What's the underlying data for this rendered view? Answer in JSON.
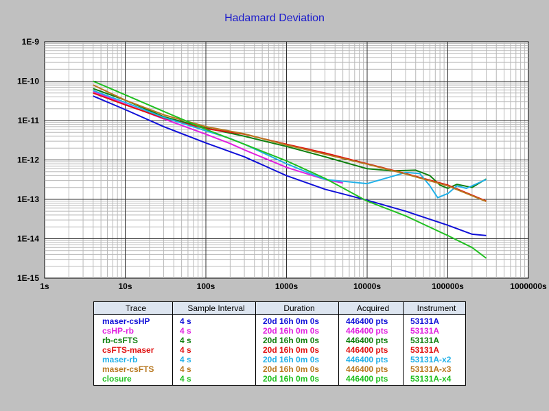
{
  "chart_data": {
    "type": "line",
    "title": "Hadamard Deviation",
    "xscale": "log",
    "yscale": "log",
    "xlim": [
      1,
      1000000
    ],
    "ylim": [
      1e-15,
      1e-09
    ],
    "grid": true,
    "x_ticks": [
      "1s",
      "10s",
      "100s",
      "1000s",
      "10000s",
      "100000s",
      "1000000s"
    ],
    "y_ticks": [
      "1E-9",
      "1E-10",
      "1E-11",
      "1E-12",
      "1E-13",
      "1E-14",
      "1E-15"
    ],
    "series": [
      {
        "name": "maser-csHP",
        "color": "#1010d8",
        "points": [
          [
            4,
            4.2e-11
          ],
          [
            10,
            1.9e-11
          ],
          [
            30,
            7e-12
          ],
          [
            100,
            2.7e-12
          ],
          [
            300,
            1.2e-12
          ],
          [
            1000,
            4e-13
          ],
          [
            3000,
            1.8e-13
          ],
          [
            10000,
            9.5e-14
          ],
          [
            30000,
            5e-14
          ],
          [
            100000,
            2.2e-14
          ],
          [
            200000,
            1.3e-14
          ],
          [
            300000,
            1.2e-14
          ]
        ]
      },
      {
        "name": "csHP-rb",
        "color": "#e020e0",
        "points": [
          [
            4,
            5.5e-11
          ],
          [
            10,
            2.6e-11
          ],
          [
            30,
            1.1e-11
          ],
          [
            100,
            4.5e-12
          ],
          [
            200,
            2.6e-12
          ],
          [
            300,
            1.8e-12
          ],
          [
            1000,
            6.5e-13
          ],
          [
            3000,
            3.2e-13
          ],
          [
            5000,
            2.6e-13
          ]
        ]
      },
      {
        "name": "rb-csFTS",
        "color": "#108010",
        "points": [
          [
            4,
            6.5e-11
          ],
          [
            10,
            3.3e-11
          ],
          [
            30,
            1.25e-11
          ],
          [
            100,
            6.5e-12
          ],
          [
            300,
            4e-12
          ],
          [
            1000,
            2.2e-12
          ],
          [
            3000,
            1.2e-12
          ],
          [
            10000,
            6e-13
          ],
          [
            20000,
            5.3e-13
          ],
          [
            40000,
            5.5e-13
          ],
          [
            60000,
            4e-13
          ],
          [
            80000,
            2.3e-13
          ],
          [
            100000,
            1.9e-13
          ],
          [
            130000,
            2.4e-13
          ],
          [
            200000,
            2e-13
          ],
          [
            300000,
            3.3e-13
          ]
        ]
      },
      {
        "name": "csFTS-maser",
        "color": "#e01010",
        "points": [
          [
            4,
            5e-11
          ],
          [
            10,
            2.5e-11
          ],
          [
            30,
            1.15e-11
          ],
          [
            100,
            6.2e-12
          ],
          [
            300,
            4.5e-12
          ],
          [
            1000,
            2.5e-12
          ],
          [
            3000,
            1.5e-12
          ],
          [
            10000,
            8e-13
          ],
          [
            30000,
            4.5e-13
          ],
          [
            100000,
            2.3e-13
          ],
          [
            300000,
            9e-14
          ]
        ]
      },
      {
        "name": "maser-rb",
        "color": "#20b0e8",
        "points": [
          [
            4,
            5.8e-11
          ],
          [
            10,
            2.9e-11
          ],
          [
            30,
            1.2e-11
          ],
          [
            100,
            5.5e-12
          ],
          [
            200,
            3.5e-12
          ],
          [
            300,
            2.5e-12
          ],
          [
            600,
            1.3e-12
          ],
          [
            1000,
            8e-13
          ],
          [
            3000,
            3.2e-13
          ],
          [
            10000,
            2.5e-13
          ],
          [
            30000,
            4.8e-13
          ],
          [
            45000,
            4.5e-13
          ],
          [
            60000,
            2.2e-13
          ],
          [
            75000,
            1.1e-13
          ],
          [
            100000,
            1.4e-13
          ],
          [
            130000,
            2.2e-13
          ],
          [
            170000,
            1.9e-13
          ],
          [
            300000,
            3.2e-13
          ]
        ]
      },
      {
        "name": "maser-csFTS",
        "color": "#b87820",
        "points": [
          [
            4,
            8e-11
          ],
          [
            10,
            3.3e-11
          ],
          [
            30,
            1.4e-11
          ],
          [
            100,
            7e-12
          ],
          [
            300,
            4.6e-12
          ],
          [
            1000,
            2.4e-12
          ],
          [
            3000,
            1.4e-12
          ],
          [
            10000,
            7.8e-13
          ],
          [
            30000,
            4.4e-13
          ],
          [
            100000,
            2.2e-13
          ],
          [
            300000,
            8.8e-14
          ]
        ]
      },
      {
        "name": "closure",
        "color": "#20c020",
        "points": [
          [
            4,
            1e-10
          ],
          [
            10,
            4.5e-11
          ],
          [
            30,
            1.7e-11
          ],
          [
            100,
            6e-12
          ],
          [
            300,
            2.5e-12
          ],
          [
            1000,
            9.5e-13
          ],
          [
            3000,
            3.4e-13
          ],
          [
            10000,
            9e-14
          ],
          [
            30000,
            3.8e-14
          ],
          [
            100000,
            1.2e-14
          ],
          [
            200000,
            6e-15
          ],
          [
            300000,
            3.2e-15
          ]
        ]
      }
    ]
  },
  "legend": {
    "headers": [
      "Trace",
      "Sample Interval",
      "Duration",
      "Acquired",
      "Instrument"
    ],
    "rows": [
      {
        "trace": "maser-csHP",
        "interval": "4 s",
        "duration": "20d 16h 0m 0s",
        "acquired": "446400 pts",
        "instrument": "53131A",
        "color": "#1010d8"
      },
      {
        "trace": "csHP-rb",
        "interval": "4 s",
        "duration": "20d 16h 0m 0s",
        "acquired": "446400 pts",
        "instrument": "53131A",
        "color": "#e020e0"
      },
      {
        "trace": "rb-csFTS",
        "interval": "4 s",
        "duration": "20d 16h 0m 0s",
        "acquired": "446400 pts",
        "instrument": "53131A",
        "color": "#108010"
      },
      {
        "trace": "csFTS-maser",
        "interval": "4 s",
        "duration": "20d 16h 0m 0s",
        "acquired": "446400 pts",
        "instrument": "53131A",
        "color": "#e01010"
      },
      {
        "trace": "maser-rb",
        "interval": "4 s",
        "duration": "20d 16h 0m 0s",
        "acquired": "446400 pts",
        "instrument": "53131A-x2",
        "color": "#20b0e8"
      },
      {
        "trace": "maser-csFTS",
        "interval": "4 s",
        "duration": "20d 16h 0m 0s",
        "acquired": "446400 pts",
        "instrument": "53131A-x3",
        "color": "#b87820"
      },
      {
        "trace": "closure",
        "interval": "4 s",
        "duration": "20d 16h 0m 0s",
        "acquired": "446400 pts",
        "instrument": "53131A-x4",
        "color": "#20c020"
      }
    ]
  }
}
